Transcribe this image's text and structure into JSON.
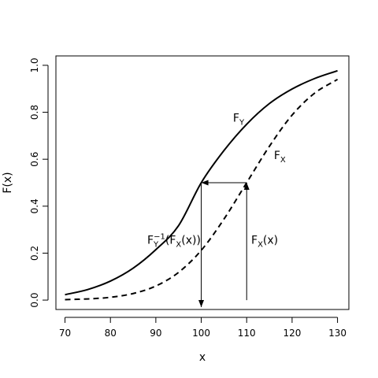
{
  "chart_data": {
    "type": "line",
    "xlabel": "x",
    "ylabel": "F(x)",
    "xlim": [
      68,
      132.5
    ],
    "ylim": [
      -0.04,
      1.04
    ],
    "x_ticks": [
      {
        "value": 70,
        "label": "70"
      },
      {
        "value": 80,
        "label": "80"
      },
      {
        "value": 90,
        "label": "90"
      },
      {
        "value": 100,
        "label": "100"
      },
      {
        "value": 110,
        "label": "110"
      },
      {
        "value": 120,
        "label": "120"
      },
      {
        "value": 130,
        "label": "130"
      }
    ],
    "y_ticks": [
      {
        "value": 0,
        "label": "0.0"
      },
      {
        "value": 0.2,
        "label": "0.2"
      },
      {
        "value": 0.4,
        "label": "0.4"
      },
      {
        "value": 0.6,
        "label": "0.6"
      },
      {
        "value": 0.8,
        "label": "0.8"
      },
      {
        "value": 1,
        "label": "1.0"
      }
    ],
    "grid": false,
    "series": [
      {
        "name": "F_Y",
        "line_style": "solid",
        "color": "#000000",
        "x": [
          70,
          75,
          80,
          85,
          90,
          95,
          100,
          105,
          110,
          115,
          120,
          125,
          130
        ],
        "y": [
          0.023,
          0.045,
          0.081,
          0.136,
          0.215,
          0.317,
          0.5,
          0.637,
          0.749,
          0.837,
          0.899,
          0.944,
          0.977
        ]
      },
      {
        "name": "F_X",
        "line_style": "dashed",
        "color": "#000000",
        "x": [
          70,
          75,
          80,
          85,
          90,
          95,
          100,
          105,
          110,
          115,
          120,
          125,
          130
        ],
        "y": [
          0.002,
          0.005,
          0.012,
          0.028,
          0.06,
          0.118,
          0.212,
          0.345,
          0.5,
          0.655,
          0.788,
          0.882,
          0.94
        ]
      }
    ],
    "series_labels": [
      {
        "series": "F_Y",
        "base": "F",
        "sub": "Y",
        "x": 107,
        "y": 0.76
      },
      {
        "series": "F_X",
        "base": "F",
        "sub": "X",
        "x": 116,
        "y": 0.6
      }
    ],
    "arrows": [
      {
        "name": "arrow-up-at-110",
        "from": [
          110,
          0
        ],
        "to": [
          110,
          0.5
        ]
      },
      {
        "name": "arrow-left-at-half",
        "from": [
          110,
          0.5
        ],
        "to": [
          100,
          0.5
        ]
      },
      {
        "name": "arrow-down-at-100",
        "from": [
          100,
          0.5
        ],
        "to": [
          100,
          -0.03
        ]
      }
    ],
    "annotations": [
      {
        "name": "annotation-inverse",
        "x": 94,
        "y": 0.24,
        "anchor": "middle",
        "parts": [
          [
            "F",
            "n"
          ],
          [
            "Y",
            "sub-sup"
          ],
          [
            "−1",
            "sup"
          ],
          [
            "(F",
            "n"
          ],
          [
            "X",
            "sub"
          ],
          [
            "(x))",
            "n"
          ]
        ]
      },
      {
        "name": "annotation-fx",
        "x": 111,
        "y": 0.24,
        "anchor": "start",
        "parts": [
          [
            "F",
            "n"
          ],
          [
            "X",
            "sub"
          ],
          [
            "(x)",
            "n"
          ]
        ]
      }
    ]
  }
}
